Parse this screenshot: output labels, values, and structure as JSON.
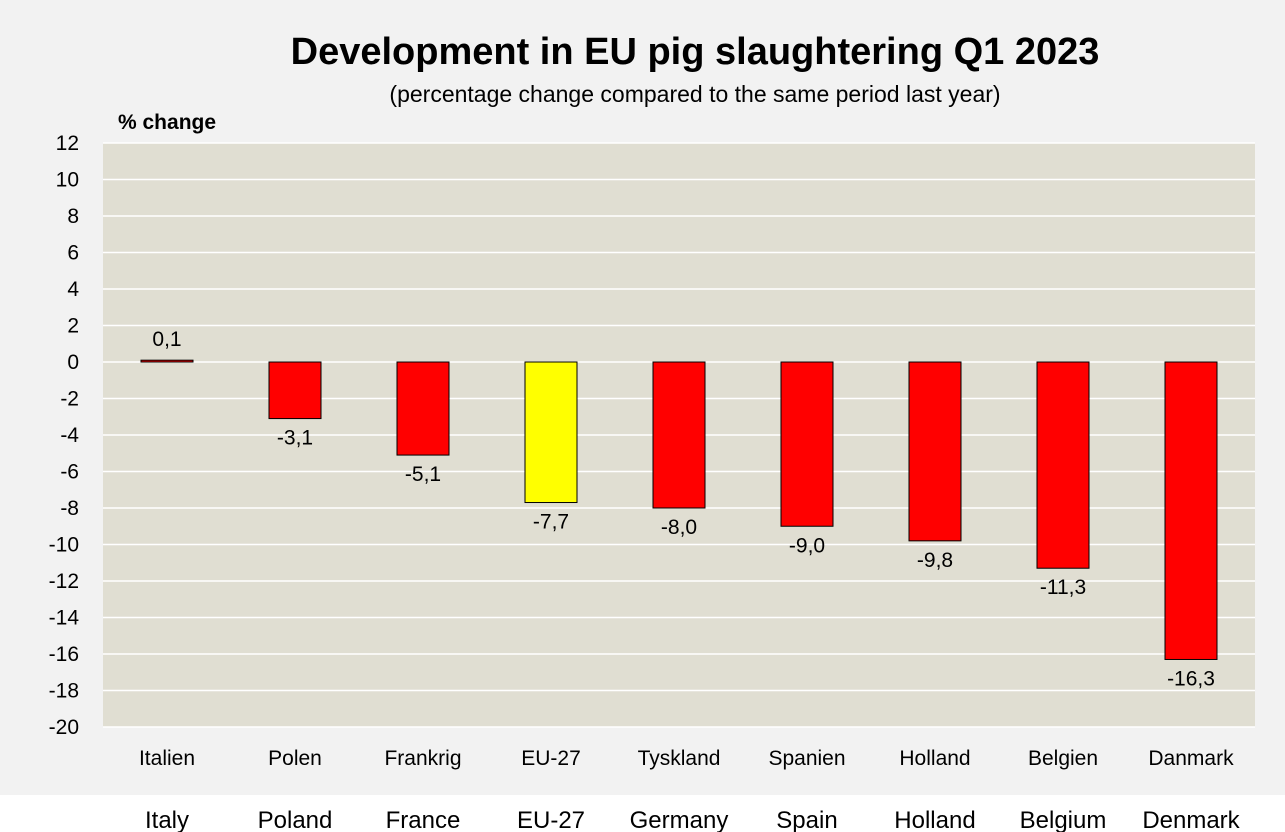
{
  "chart_data": {
    "type": "bar",
    "title": "Development in EU pig slaughtering Q1 2023",
    "subtitle": "(percentage change compared to the same period last year)",
    "ylabel": "% change",
    "ylim": [
      -20,
      12
    ],
    "ytick_step": 2,
    "grid": true,
    "categories": [
      "Italien",
      "Polen",
      "Frankrig",
      "EU-27",
      "Tyskland",
      "Spanien",
      "Holland",
      "Belgien",
      "Danmark"
    ],
    "categories_english": [
      "Italy",
      "Poland",
      "France",
      "EU-27",
      "Germany",
      "Spain",
      "Holland",
      "Belgium",
      "Denmark"
    ],
    "values": [
      0.1,
      -3.1,
      -5.1,
      -7.7,
      -8.0,
      -9.0,
      -9.8,
      -11.3,
      -16.3
    ],
    "data_labels": [
      "0,1",
      "-3,1",
      "-5,1",
      "-7,7",
      "-8,0",
      "-9,0",
      "-9,8",
      "-11,3",
      "-16,3"
    ],
    "bar_colors": [
      "#ff0000",
      "#ff0000",
      "#ff0000",
      "#ffff00",
      "#ff0000",
      "#ff0000",
      "#ff0000",
      "#ff0000",
      "#ff0000"
    ],
    "plot_background": "#e0ded2",
    "outer_background": "#f2f2f2"
  }
}
